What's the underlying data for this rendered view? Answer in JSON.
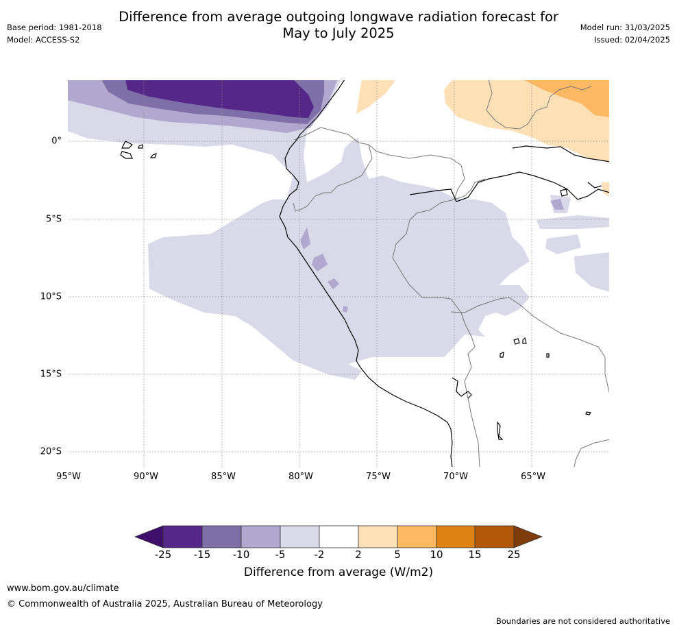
{
  "title_line1": "Difference from average outgoing longwave radiation forecast for",
  "title_line2": "May to July 2025",
  "meta_left": {
    "base_period": "Base period: 1981-2018",
    "model": "Model: ACCESS-S2"
  },
  "meta_right": {
    "model_run": "Model run: 31/03/2025",
    "issued": "Issued: 02/04/2025"
  },
  "map": {
    "lat_labels": [
      "0°",
      "5°S",
      "10°S",
      "15°S",
      "20°S"
    ],
    "lon_labels": [
      "95°W",
      "90°W",
      "85°W",
      "80°W",
      "75°W",
      "70°W",
      "65°W"
    ]
  },
  "colorbar": {
    "colors": [
      "#3f0e6a",
      "#542789",
      "#7f6fa8",
      "#b1a8d0",
      "#d9d9ea",
      "#ffffff",
      "#fde0b6",
      "#fdb863",
      "#e08213",
      "#b35807",
      "#7f3c0a"
    ],
    "ticks": [
      "-25",
      "-15",
      "-10",
      "-5",
      "-2",
      "2",
      "5",
      "10",
      "15",
      "25"
    ],
    "label": "Difference from average (W/m2)"
  },
  "footer": {
    "website": "www.bom.gov.au/climate",
    "copyright": "© Commonwealth of Australia 2025, Australian Bureau of Meteorology",
    "disclaimer": "Boundaries are not considered authoritative"
  }
}
